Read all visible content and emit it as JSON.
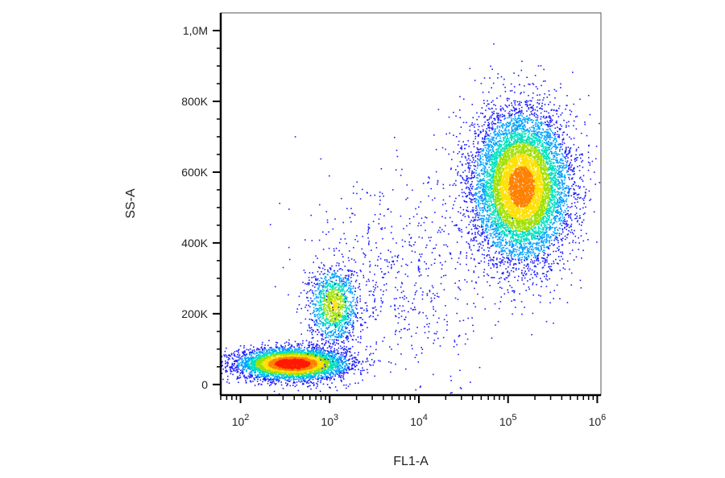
{
  "chart_data": {
    "type": "scatter",
    "title": "",
    "xlabel": "FL1-A",
    "ylabel": "SS-A",
    "x_scale": "log",
    "xlim": [
      60,
      1100000
    ],
    "ylim": [
      -30000,
      1050000
    ],
    "x_ticks": [
      {
        "base": "10",
        "exp": "2",
        "value": 100
      },
      {
        "base": "10",
        "exp": "3",
        "value": 1000
      },
      {
        "base": "10",
        "exp": "4",
        "value": 10000
      },
      {
        "base": "10",
        "exp": "5",
        "value": 100000
      },
      {
        "base": "10",
        "exp": "6",
        "value": 1000000
      }
    ],
    "y_ticks": [
      {
        "label": "0",
        "value": 0
      },
      {
        "label": "200K",
        "value": 200000
      },
      {
        "label": "400K",
        "value": 400000
      },
      {
        "label": "600K",
        "value": 600000
      },
      {
        "label": "800K",
        "value": 800000
      },
      {
        "label": "1,0M",
        "value": 1000000
      }
    ],
    "grid": false,
    "color_map": [
      "#1a1aff",
      "#00a0ff",
      "#00e0c0",
      "#a0e000",
      "#ffe000",
      "#ff8000",
      "#ff1a00"
    ],
    "populations": [
      {
        "x_center": 380,
        "y_center": 60000,
        "x_spread_decades": 0.3,
        "y_spread": 22000,
        "points": 5200
      },
      {
        "x_center": 1100,
        "y_center": 225000,
        "x_spread_decades": 0.14,
        "y_spread": 55000,
        "points": 1300
      },
      {
        "x_center": 140000,
        "y_center": 560000,
        "x_spread_decades": 0.27,
        "y_spread": 105000,
        "points": 9000
      },
      {
        "x_center": 6000,
        "y_center": 300000,
        "x_spread_decades": 0.55,
        "y_spread": 150000,
        "points": 650
      }
    ]
  }
}
